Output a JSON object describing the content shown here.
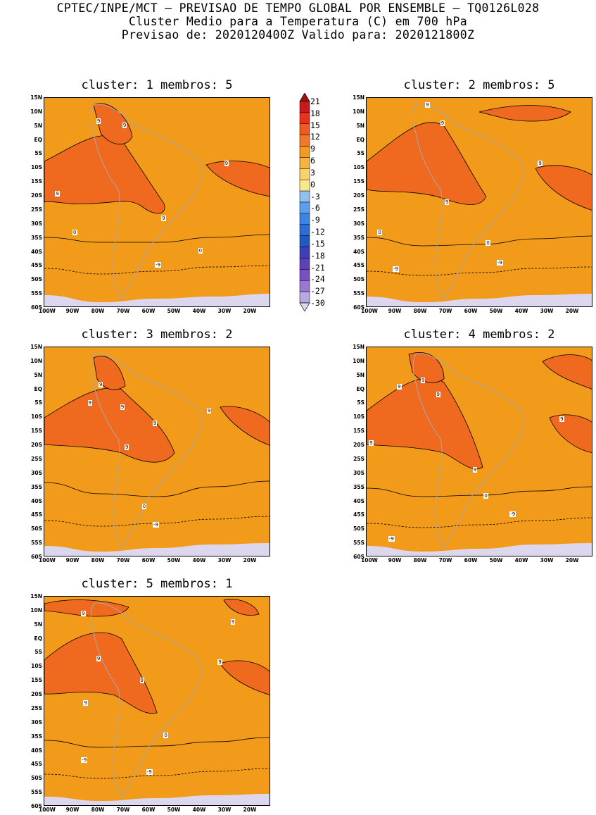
{
  "header": {
    "line1": "CPTEC/INPE/MCT – PREVISAO DE TEMPO GLOBAL POR ENSEMBLE – TQ0126L028",
    "line2": "Cluster Medio para a Temperatura (C) em 700 hPa",
    "line3": "Previsao de: 2020120400Z   Valido para: 2020121800Z"
  },
  "axes": {
    "lat_labels": [
      "15N",
      "10N",
      "5N",
      "EQ",
      "5S",
      "10S",
      "15S",
      "20S",
      "25S",
      "30S",
      "35S",
      "40S",
      "45S",
      "50S",
      "55S",
      "60S"
    ],
    "lon_labels": [
      "100W",
      "90W",
      "80W",
      "70W",
      "60W",
      "50W",
      "40W",
      "30W",
      "20W"
    ]
  },
  "colorbar": {
    "ticks": [
      "21",
      "18",
      "15",
      "12",
      "9",
      "6",
      "3",
      "0",
      "-3",
      "-6",
      "-9",
      "-12",
      "-15",
      "-18",
      "-21",
      "-24",
      "-27",
      "-30"
    ],
    "colors": [
      "#a01010",
      "#c81a1a",
      "#e8321e",
      "#f05a1e",
      "#f07828",
      "#f59a1e",
      "#f5b43c",
      "#f8d26a",
      "#fbe88c",
      "#90c0f0",
      "#5ca0ec",
      "#3c84e4",
      "#2c6cd8",
      "#2456c4",
      "#3c40b4",
      "#5c40b8",
      "#7850c0",
      "#9878d0",
      "#b8a8e0",
      "#ddd8f0"
    ]
  },
  "panels": [
    {
      "title": "cluster: 1   membros: 5",
      "contour_labels": [
        "9",
        "9",
        "9",
        "9",
        "9",
        "0",
        "0",
        "-9"
      ]
    },
    {
      "title": "cluster: 2   membros: 5",
      "contour_labels": [
        "9",
        "9",
        "9",
        "9",
        "0",
        "0",
        "-9",
        "-9"
      ]
    },
    {
      "title": "cluster: 3   membros: 2",
      "contour_labels": [
        "9",
        "9",
        "9",
        "9",
        "9",
        "9",
        "0",
        "-9"
      ]
    },
    {
      "title": "cluster: 4   membros: 2",
      "contour_labels": [
        "9",
        "9",
        "9",
        "9",
        "9",
        "9",
        "0",
        "-9",
        "-9"
      ]
    },
    {
      "title": "cluster: 5   membros: 1",
      "contour_labels": [
        "9",
        "9",
        "9",
        "9",
        "9",
        "9",
        "0",
        "-9",
        "-9"
      ]
    }
  ]
}
